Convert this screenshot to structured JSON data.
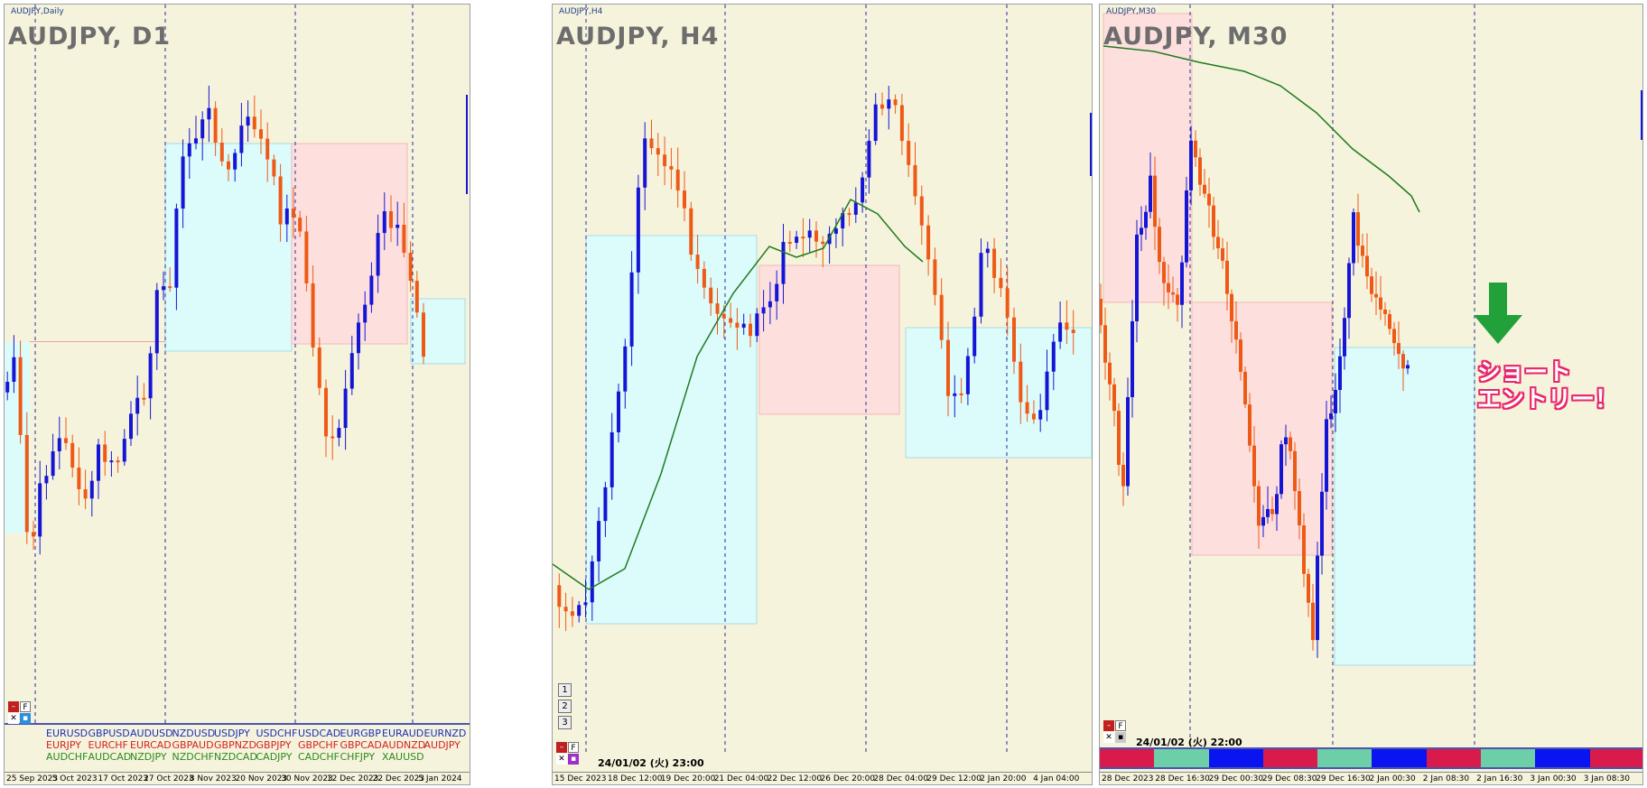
{
  "panes": [
    {
      "id": "d1",
      "subtitle": "AUDJPY,Daily",
      "title": "AUDJPY, D1",
      "time_labels": [
        "25 Sep 2023",
        "5 Oct 2023",
        "17 Oct 2023",
        "27 Oct 2023",
        "8 Nov 2023",
        "20 Nov 2023",
        "30 Nov 2023",
        "12 Dec 2023",
        "22 Dec 2023",
        "5 Jan 2024"
      ]
    },
    {
      "id": "h4",
      "subtitle": "AUDJPY,H4",
      "title": "AUDJPY, H4",
      "time_labels": [
        "15 Dec 2023",
        "18 Dec 12:00",
        "19 Dec 20:00",
        "21 Dec 04:00",
        "22 Dec 12:00",
        "26 Dec 20:00",
        "28 Dec 04:00",
        "29 Dec 12:00",
        "2 Jan 20:00",
        "4 Jan 04:00"
      ],
      "datetime": "24/01/02 (火) 23:00",
      "buttons": [
        "1",
        "2",
        "3"
      ]
    },
    {
      "id": "m30",
      "subtitle": "AUDJPY,M30",
      "title": "AUDJPY, M30",
      "time_labels": [
        "28 Dec 2023",
        "28 Dec 16:30",
        "29 Dec 00:30",
        "29 Dec 08:30",
        "29 Dec 16:30",
        "2 Jan 00:30",
        "2 Jan 08:30",
        "2 Jan 16:30",
        "3 Jan 00:30",
        "3 Jan 08:30"
      ],
      "datetime": "24/01/02 (火) 22:00"
    }
  ],
  "currency_panel": {
    "rows": [
      [
        {
          "t": "EURUSD",
          "c": "blue"
        },
        {
          "t": "GBPUSD",
          "c": "blue"
        },
        {
          "t": "AUDUSD",
          "c": "blue"
        },
        {
          "t": "NZDUSD",
          "c": "blue"
        },
        {
          "t": "USDJPY",
          "c": "blue"
        },
        {
          "t": "USDCHF",
          "c": "blue"
        },
        {
          "t": "USDCAD",
          "c": "blue"
        },
        {
          "t": "EURGBP",
          "c": "blue"
        },
        {
          "t": "EURAUD",
          "c": "blue"
        },
        {
          "t": "EURNZD",
          "c": "blue"
        }
      ],
      [
        {
          "t": "EURJPY",
          "c": "red"
        },
        {
          "t": "EURCHF",
          "c": "red"
        },
        {
          "t": "EURCAD",
          "c": "red"
        },
        {
          "t": "GBPAUD",
          "c": "red"
        },
        {
          "t": "GBPNZD",
          "c": "red"
        },
        {
          "t": "GBPJPY",
          "c": "red"
        },
        {
          "t": "GBPCHF",
          "c": "red"
        },
        {
          "t": "GBPCAD",
          "c": "red"
        },
        {
          "t": "AUDNZD",
          "c": "red"
        },
        {
          "t": "AUDJPY",
          "c": "red"
        }
      ],
      [
        {
          "t": "AUDCHF",
          "c": "green"
        },
        {
          "t": "AUDCAD",
          "c": "green"
        },
        {
          "t": "NZDJPY",
          "c": "green"
        },
        {
          "t": "NZDCHF",
          "c": "green"
        },
        {
          "t": "NZDCAD",
          "c": "green"
        },
        {
          "t": "CADJPY",
          "c": "green"
        },
        {
          "t": "CADCHF",
          "c": "green"
        },
        {
          "t": "CHFJPY",
          "c": "green"
        },
        {
          "t": "XAUUSD",
          "c": "green"
        }
      ]
    ]
  },
  "annotation": {
    "line1": "ショート",
    "line2": "エントリー！"
  },
  "colors": {
    "bull": "#1515d6",
    "bear": "#ee5a16",
    "bg": "#f6f3dc",
    "box_blue": "#dcfbfb",
    "box_pink": "#fde0de",
    "ma": "#1e7b1e",
    "arrow": "#22a03a",
    "annot": "#e8266b"
  },
  "session_bar": [
    "#d81b4a",
    "#6dcfa8",
    "#0a14f0",
    "#d81b4a",
    "#6dcfa8",
    "#0a14f0",
    "#d81b4a",
    "#6dcfa8",
    "#0a14f0",
    "#d81b4a"
  ],
  "chart_data": [
    {
      "type": "candlestick",
      "pane": "AUDJPY, D1",
      "price_level": "higher after November rally, pullback in December",
      "candles_visible": 66
    },
    {
      "type": "candlestick",
      "pane": "AUDJPY, H4",
      "moving_average": true,
      "candles_visible": 80
    },
    {
      "type": "candlestick",
      "pane": "AUDJPY, M30",
      "moving_average": true,
      "candles_visible": 70
    }
  ]
}
